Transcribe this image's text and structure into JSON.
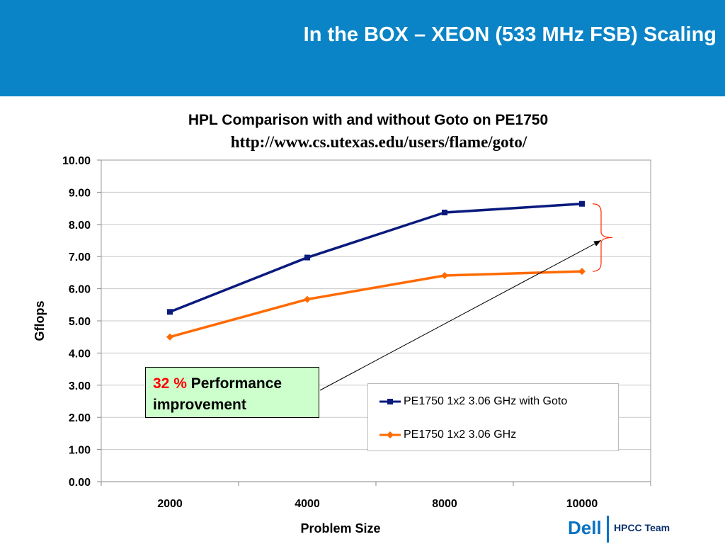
{
  "slide": {
    "title": "In the BOX – XEON (533 MHz FSB) Scaling",
    "accent_color": "#0a84c6"
  },
  "chart_data": {
    "type": "line",
    "title": "HPL Comparison with and without Goto on PE1750",
    "subtitle": "http://www.cs.utexas.edu/users/flame/goto/",
    "xlabel": "Problem Size",
    "ylabel": "Gflops",
    "categories": [
      "2000",
      "4000",
      "8000",
      "10000"
    ],
    "ylim": [
      0,
      10
    ],
    "yticks": [
      "0.00",
      "1.00",
      "2.00",
      "3.00",
      "4.00",
      "5.00",
      "6.00",
      "7.00",
      "8.00",
      "9.00",
      "10.00"
    ],
    "grid": true,
    "legend_position": "bottom-right",
    "series": [
      {
        "name": "PE1750 1x2 3.06 GHz with Goto",
        "values": [
          5.28,
          6.97,
          8.37,
          8.64
        ],
        "color": "#0a1a7c",
        "marker": "square"
      },
      {
        "name": "PE1750 1x2 3.06 GHz",
        "values": [
          4.5,
          5.67,
          6.41,
          6.54
        ],
        "color": "#ff6a00",
        "marker": "diamond"
      }
    ],
    "annotation": {
      "percent": "32 %",
      "line1_rest": "Performance",
      "line2": "improvement"
    }
  },
  "footer": {
    "logo": "Dell",
    "team": "HPCC Team"
  }
}
